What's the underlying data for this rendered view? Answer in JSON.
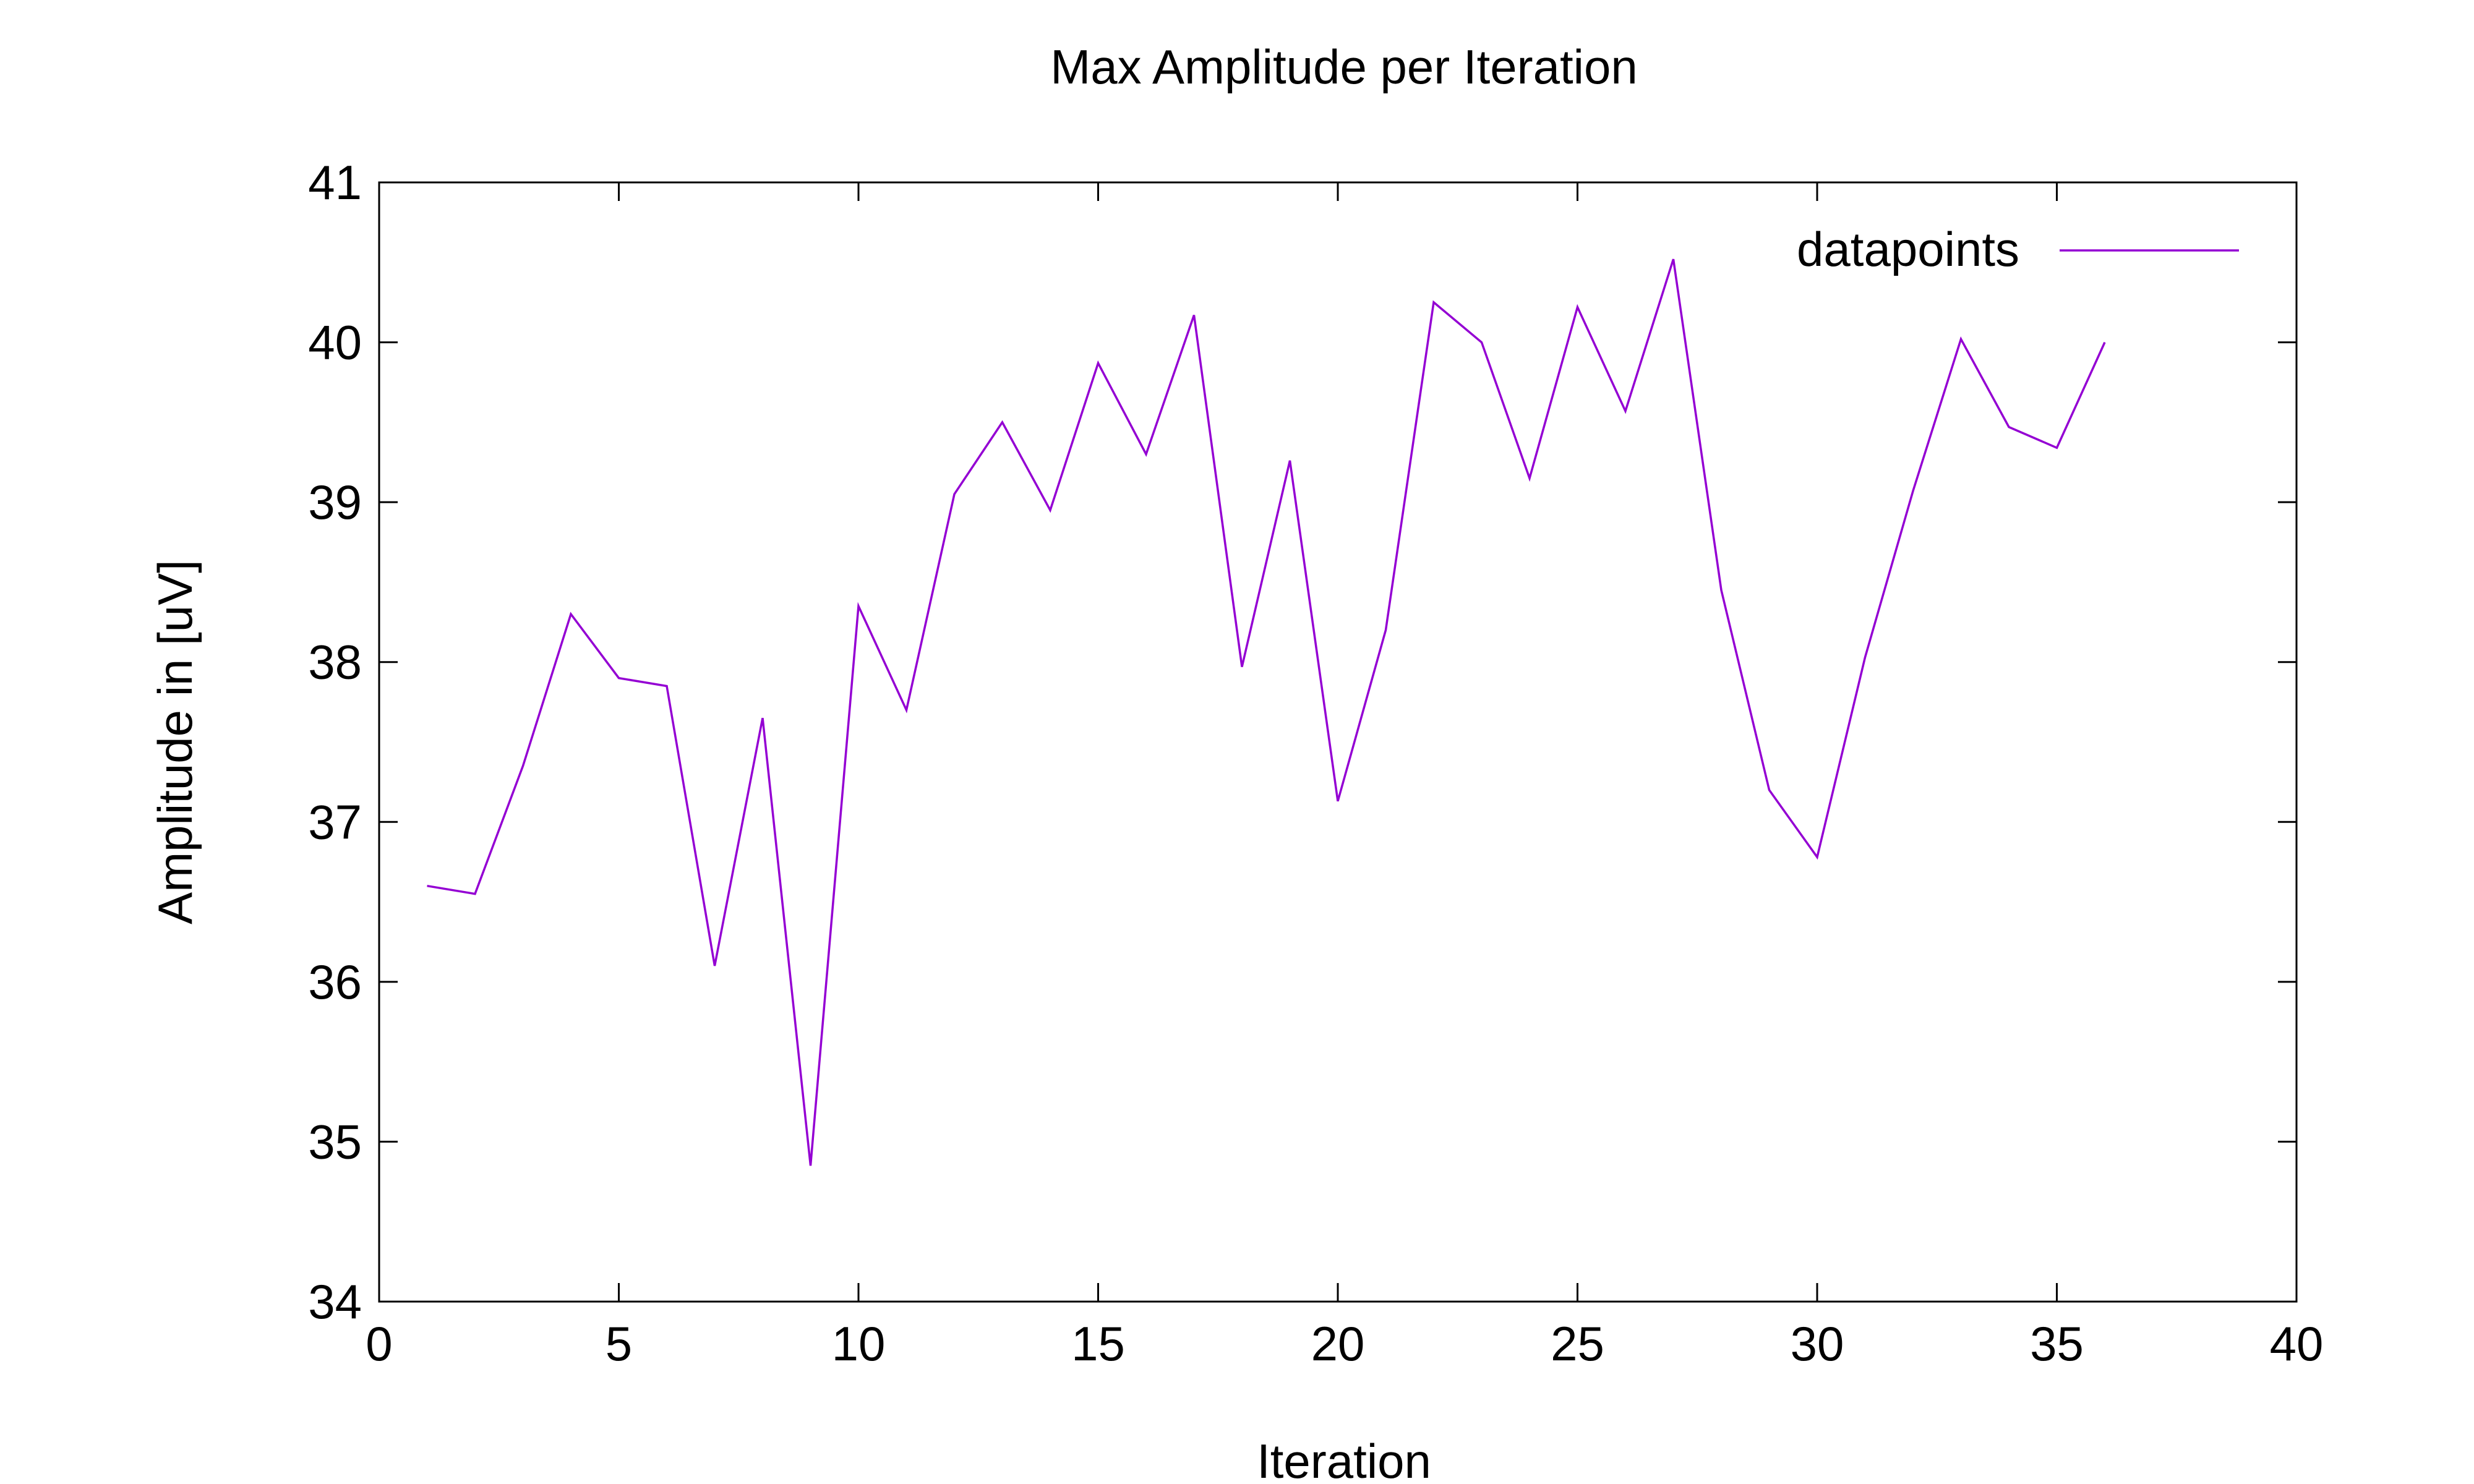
{
  "chart_data": {
    "type": "line",
    "title": "Max Amplitude per Iteration",
    "xlabel": "Iteration",
    "ylabel": "Amplitude in [uV]",
    "xlim": [
      0,
      40
    ],
    "ylim": [
      34,
      41
    ],
    "xticks": [
      0,
      5,
      10,
      15,
      20,
      25,
      30,
      35,
      40
    ],
    "yticks": [
      34,
      35,
      36,
      37,
      38,
      39,
      40,
      41
    ],
    "grid": false,
    "legend_position": "top-right",
    "series": [
      {
        "name": "datapoints",
        "color": "#9400d3",
        "x": [
          1,
          2,
          3,
          4,
          5,
          6,
          7,
          8,
          9,
          10,
          11,
          12,
          13,
          14,
          15,
          16,
          17,
          18,
          19,
          20,
          21,
          22,
          23,
          24,
          25,
          26,
          27,
          28,
          29,
          30,
          31,
          32,
          33,
          34,
          35,
          36
        ],
        "y": [
          36.6,
          36.55,
          37.35,
          38.3,
          37.9,
          37.85,
          36.1,
          37.65,
          34.85,
          38.35,
          37.7,
          39.05,
          39.5,
          38.95,
          39.87,
          39.3,
          40.17,
          37.97,
          39.26,
          37.13,
          38.2,
          40.25,
          40.0,
          39.15,
          40.22,
          39.57,
          40.52,
          38.45,
          37.2,
          36.78,
          38.03,
          39.07,
          40.02,
          39.47,
          39.34,
          40.0
        ]
      }
    ]
  }
}
